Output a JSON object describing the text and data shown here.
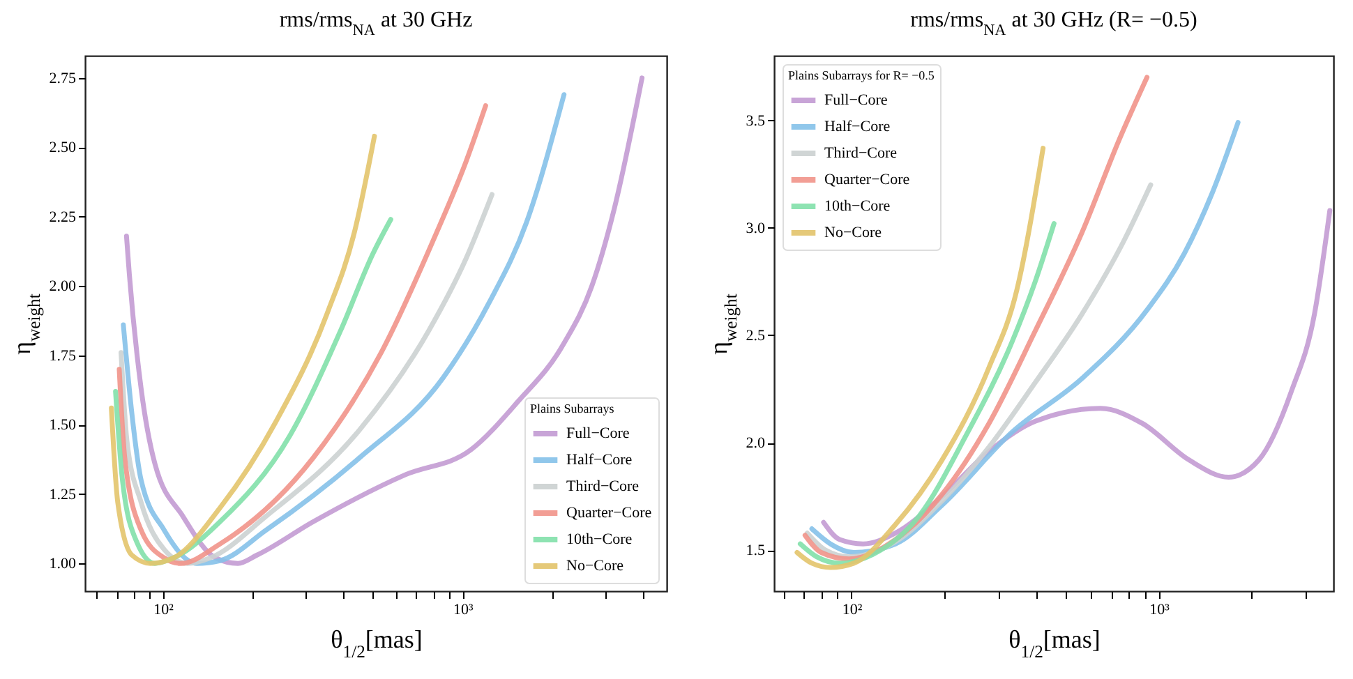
{
  "chart_data": [
    {
      "type": "line",
      "title": "rms/rms$_{NA}$ at 30 GHz",
      "xlabel": "θ$_{1/2}$[mas]",
      "ylabel": "η$_{weight}$",
      "legend_title": "Plains Subarrays",
      "legend": "bottom right",
      "log": "x",
      "xlim": [
        55,
        4800
      ],
      "ylim": [
        0.9,
        2.83
      ],
      "xticks": [
        {
          "value": 60,
          "label": null
        },
        {
          "value": 70,
          "label": null
        },
        {
          "value": 80,
          "label": null
        },
        {
          "value": 90,
          "label": null
        },
        {
          "value": 100,
          "label": "10²"
        },
        {
          "value": 200,
          "label": null
        },
        {
          "value": 300,
          "label": null
        },
        {
          "value": 400,
          "label": null
        },
        {
          "value": 500,
          "label": null
        },
        {
          "value": 600,
          "label": null
        },
        {
          "value": 700,
          "label": null
        },
        {
          "value": 800,
          "label": null
        },
        {
          "value": 900,
          "label": null
        },
        {
          "value": 1000,
          "label": "10³"
        },
        {
          "value": 2000,
          "label": null
        },
        {
          "value": 3000,
          "label": null
        },
        {
          "value": 4000,
          "label": null
        }
      ],
      "yticks": [
        {
          "value": 1,
          "label": "1.00"
        },
        {
          "value": 1.25,
          "label": "1.25"
        },
        {
          "value": 1.5,
          "label": "1.50"
        },
        {
          "value": 1.75,
          "label": "1.75"
        },
        {
          "value": 2,
          "label": "2.00"
        },
        {
          "value": 2.25,
          "label": "2.25"
        },
        {
          "value": 2.5,
          "label": "2.50"
        },
        {
          "value": 2.75,
          "label": "2.75"
        }
      ],
      "series": [
        {
          "name": "Full−Core",
          "color": "#c39bd3",
          "x": [
            75.6,
            77.3,
            84.6,
            94,
            116.6,
            149.8,
            178,
            206,
            317,
            645,
            1067,
            1520,
            2170,
            2700,
            3210,
            3970
          ],
          "values": [
            2.18,
            2.04,
            1.63,
            1.36,
            1.17,
            1.02,
            1.0,
            1.03,
            1.15,
            1.32,
            1.41,
            1.58,
            1.79,
            2.0,
            2.28,
            2.75
          ]
        },
        {
          "name": "Half−Core",
          "color": "#85c1e9",
          "x": [
            73.8,
            78.8,
            84.6,
            101,
            129.8,
            155,
            221,
            452,
            862,
            1226,
            1635,
            2180
          ],
          "values": [
            1.86,
            1.54,
            1.3,
            1.12,
            1.0,
            1.01,
            1.12,
            1.38,
            1.67,
            1.94,
            2.23,
            2.69
          ]
        },
        {
          "name": "Third−Core",
          "color": "#ccd1d1",
          "x": [
            72.5,
            75.9,
            84.6,
            101,
            120.8,
            144,
            221,
            452,
            772,
            1028,
            1254
          ],
          "values": [
            1.76,
            1.44,
            1.22,
            1.05,
            1.0,
            1.02,
            1.17,
            1.48,
            1.84,
            2.1,
            2.33
          ]
        },
        {
          "name": "Quarter−Core",
          "color": "#f1948a",
          "x": [
            71.5,
            74.6,
            84.6,
            101,
            114.6,
            155,
            317,
            541,
            802,
            1028,
            1194
          ],
          "values": [
            1.7,
            1.38,
            1.12,
            1.02,
            1.0,
            1.07,
            1.38,
            1.77,
            2.17,
            2.45,
            2.65
          ]
        },
        {
          "name": "10th−Core",
          "color": "#82e0aa",
          "x": [
            69.5,
            73.3,
            81.6,
            94,
            108.6,
            155,
            265,
            392,
            504,
            576
          ],
          "values": [
            1.62,
            1.3,
            1.08,
            1.0,
            1.02,
            1.15,
            1.46,
            1.84,
            2.12,
            2.24
          ]
        },
        {
          "name": "No−Core",
          "color": "#e3c46b",
          "x": [
            67.3,
            70.7,
            78.8,
            90.8,
            108.6,
            155,
            238,
            353,
            437,
            508
          ],
          "values": [
            1.56,
            1.22,
            1.03,
            1.0,
            1.02,
            1.2,
            1.51,
            1.9,
            2.2,
            2.54
          ]
        }
      ]
    },
    {
      "type": "line",
      "title": "rms/rms$_{NA}$ at 30 GHz (R= −0.5)",
      "xlabel": "θ$_{1/2}$[mas]",
      "ylabel": "η$_{weight}$",
      "legend_title": "Plains Subarrays for R= −0.5",
      "legend": "top left",
      "log": "x",
      "xlim": [
        56,
        3700
      ],
      "ylim": [
        1.31,
        3.8
      ],
      "xticks": [
        {
          "value": 60,
          "label": null
        },
        {
          "value": 70,
          "label": null
        },
        {
          "value": 80,
          "label": null
        },
        {
          "value": 90,
          "label": null
        },
        {
          "value": 100,
          "label": "10²"
        },
        {
          "value": 200,
          "label": null
        },
        {
          "value": 300,
          "label": null
        },
        {
          "value": 400,
          "label": null
        },
        {
          "value": 500,
          "label": null
        },
        {
          "value": 600,
          "label": null
        },
        {
          "value": 700,
          "label": null
        },
        {
          "value": 800,
          "label": null
        },
        {
          "value": 900,
          "label": null
        },
        {
          "value": 1000,
          "label": "10³"
        },
        {
          "value": 2000,
          "label": null
        },
        {
          "value": 3000,
          "label": null
        }
      ],
      "yticks": [
        {
          "value": 1.5,
          "label": "1.5"
        },
        {
          "value": 2,
          "label": "2.0"
        },
        {
          "value": 2.5,
          "label": "2.5"
        },
        {
          "value": 3,
          "label": "3.0"
        },
        {
          "value": 3.5,
          "label": "3.5"
        }
      ],
      "series": [
        {
          "name": "Full−Core",
          "color": "#c39bd3",
          "x": [
            81.1,
            91.6,
            109,
            139,
            197,
            280,
            396,
            646,
            884,
            1254,
            1686,
            2115,
            2700,
            3210,
            3600
          ],
          "values": [
            1.63,
            1.55,
            1.53,
            1.58,
            1.75,
            1.96,
            2.1,
            2.16,
            2.09,
            1.92,
            1.84,
            1.92,
            2.24,
            2.6,
            3.08
          ]
        },
        {
          "name": "Half−Core",
          "color": "#85c1e9",
          "x": [
            74.3,
            85.4,
            101.8,
            139,
            197,
            333,
            563,
            918,
            1210,
            1490,
            1810
          ],
          "values": [
            1.6,
            1.53,
            1.49,
            1.53,
            1.71,
            2.05,
            2.3,
            2.62,
            2.88,
            3.16,
            3.49
          ]
        },
        {
          "name": "Third−Core",
          "color": "#ccd1d1",
          "x": [
            71.8,
            82.5,
            98,
            139,
            197,
            280,
            396,
            563,
            770,
            941
          ],
          "values": [
            1.58,
            1.5,
            1.47,
            1.54,
            1.73,
            1.98,
            2.28,
            2.6,
            2.94,
            3.2
          ]
        },
        {
          "name": "Quarter−Core",
          "color": "#f1948a",
          "x": [
            70.6,
            79.7,
            98,
            139,
            197,
            280,
            396,
            563,
            743,
            915
          ],
          "values": [
            1.57,
            1.49,
            1.46,
            1.55,
            1.76,
            2.09,
            2.52,
            2.98,
            3.41,
            3.7
          ]
        },
        {
          "name": "10th−Core",
          "color": "#82e0aa",
          "x": [
            68.1,
            77,
            91.6,
            117,
            166,
            235,
            333,
            396,
            456
          ],
          "values": [
            1.53,
            1.47,
            1.44,
            1.48,
            1.66,
            2.03,
            2.47,
            2.75,
            3.02
          ]
        },
        {
          "name": "No−Core",
          "color": "#e3c46b",
          "x": [
            66.5,
            74.3,
            85.4,
            101.8,
            139,
            197,
            280,
            345,
            420
          ],
          "values": [
            1.49,
            1.44,
            1.42,
            1.44,
            1.62,
            1.92,
            2.35,
            2.71,
            3.37
          ]
        }
      ]
    }
  ]
}
